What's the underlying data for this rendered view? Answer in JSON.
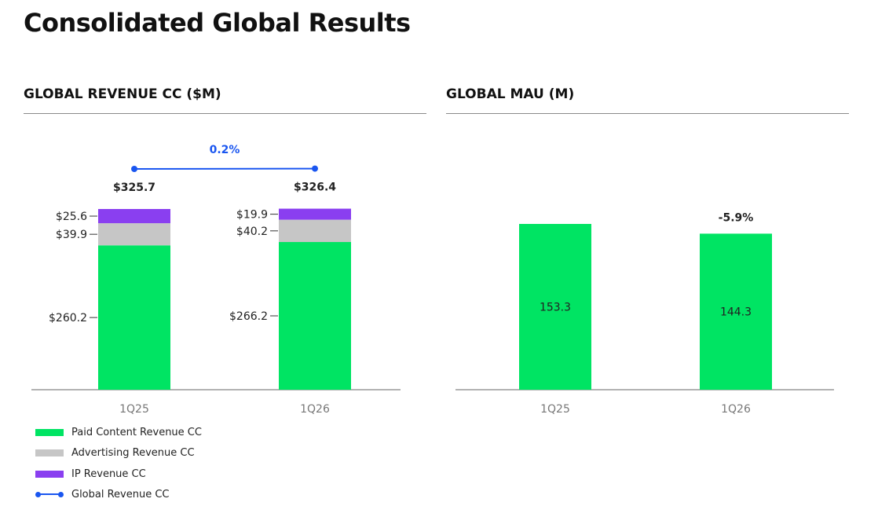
{
  "page_title": "Consolidated Global Results",
  "colors": {
    "paid": "#00e463",
    "advertising": "#c6c6c6",
    "ip": "#8a3ff0",
    "line": "#1a56f0",
    "axis": "#666666"
  },
  "legend": [
    {
      "label": "Paid Content Revenue CC",
      "color": "#00e463",
      "kind": "bar"
    },
    {
      "label": "Advertising Revenue CC",
      "color": "#c6c6c6",
      "kind": "bar"
    },
    {
      "label": "IP Revenue CC",
      "color": "#8a3ff0",
      "kind": "bar"
    },
    {
      "label": "Global Revenue CC",
      "color": "#1a56f0",
      "kind": "line"
    }
  ],
  "chart_data": [
    {
      "type": "bar",
      "stacked": true,
      "title": "GLOBAL REVENUE CC ($M)",
      "categories": [
        "1Q25",
        "1Q26"
      ],
      "series": [
        {
          "name": "Paid Content Revenue CC",
          "values": [
            260.2,
            266.2
          ],
          "labels": [
            "$260.2",
            "$266.2"
          ]
        },
        {
          "name": "Advertising Revenue CC",
          "values": [
            39.9,
            40.2
          ],
          "labels": [
            "$39.9",
            "$40.2"
          ]
        },
        {
          "name": "IP Revenue CC",
          "values": [
            25.6,
            19.9
          ],
          "labels": [
            "$25.6",
            "$19.9"
          ]
        }
      ],
      "totals": {
        "name": "Global Revenue CC",
        "values": [
          325.7,
          326.4
        ],
        "labels": [
          "$325.7",
          "$326.4"
        ]
      },
      "growth_label": "0.2%",
      "ylim": [
        0,
        330
      ],
      "grid": false
    },
    {
      "type": "bar",
      "title": "GLOBAL MAU (M)",
      "categories": [
        "1Q25",
        "1Q26"
      ],
      "values": [
        153.3,
        144.3
      ],
      "labels": [
        "153.3",
        "144.3"
      ],
      "growth_label": "-5.9%",
      "ylim": [
        0,
        300
      ],
      "grid": false
    }
  ]
}
